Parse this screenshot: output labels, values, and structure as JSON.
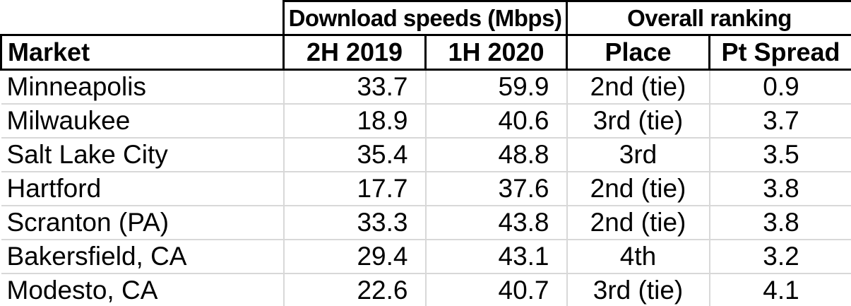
{
  "chart_data": {
    "type": "table",
    "column_groups": [
      {
        "label": "",
        "span": 1
      },
      {
        "label": "Download speeds (Mbps)",
        "span": 2
      },
      {
        "label": "Overall ranking",
        "span": 2
      }
    ],
    "columns": [
      "Market",
      "2H 2019",
      "1H 2020",
      "Place",
      "Pt Spread"
    ],
    "rows": [
      [
        "Minneapolis",
        "33.7",
        "59.9",
        "2nd (tie)",
        "0.9"
      ],
      [
        "Milwaukee",
        "18.9",
        "40.6",
        "3rd (tie)",
        "3.7"
      ],
      [
        "Salt Lake City",
        "35.4",
        "48.8",
        "3rd",
        "3.5"
      ],
      [
        "Hartford",
        "17.7",
        "37.6",
        "2nd (tie)",
        "3.8"
      ],
      [
        "Scranton (PA)",
        "33.3",
        "43.8",
        "2nd (tie)",
        "3.8"
      ],
      [
        "Bakersfield, CA",
        "29.4",
        "43.1",
        "4th",
        "3.2"
      ],
      [
        "Modesto, CA",
        "22.6",
        "40.7",
        "3rd (tie)",
        "4.1"
      ]
    ],
    "layout": {
      "grid": "on",
      "header_border_color": "#000000",
      "gridline_color": "#d8d8d8",
      "background_color": "#ffffff",
      "text_color": "#000000"
    }
  }
}
